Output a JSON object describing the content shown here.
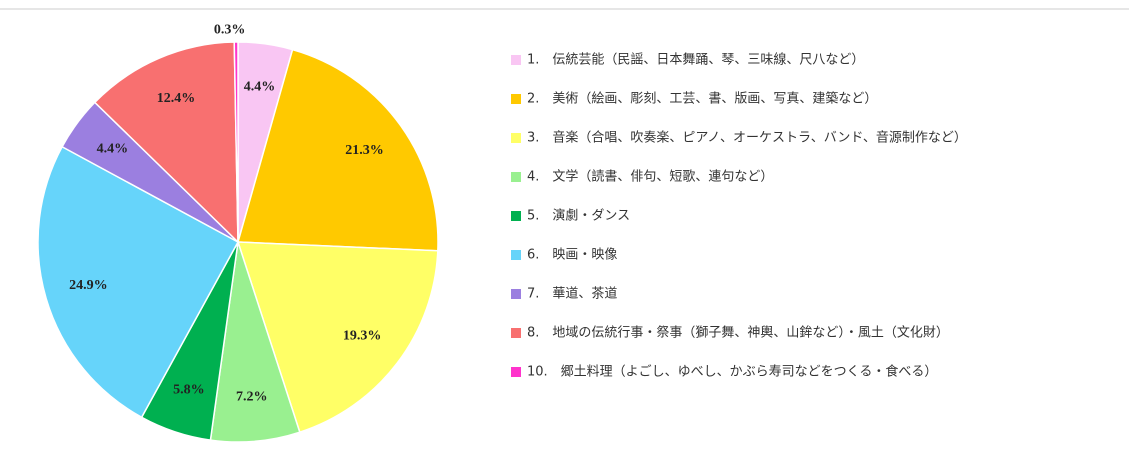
{
  "chart_data": {
    "type": "pie",
    "categories": [
      "1.　伝統芸能（民謡、日本舞踊、琴、三味線、尺八など）",
      "2.　美術（絵画、彫刻、工芸、書、版画、写真、建築など）",
      "3.　音楽（合唱、吹奏楽、ピアノ、オーケストラ、バンド、音源制作など）",
      "4.　文学（読書、俳句、短歌、連句など）",
      "5.　演劇・ダンス",
      "6.　映画・映像",
      "7.　華道、茶道",
      "8.　地域の伝統行事・祭事（獅子舞、神輿、山鉾など）・風土（文化財）",
      "10.　郷土料理（よごし、ゆべし、かぶら寿司などをつくる・食べる）"
    ],
    "values": [
      4.4,
      21.3,
      19.3,
      7.2,
      5.8,
      24.9,
      4.4,
      12.4,
      0.3
    ],
    "value_labels": [
      "4.4%",
      "21.3%",
      "19.3%",
      "7.2%",
      "5.8%",
      "24.9%",
      "4.4%",
      "12.4%",
      "0.3%"
    ],
    "colors": [
      "#f9c6f3",
      "#ffc900",
      "#ffff66",
      "#99f090",
      "#00b050",
      "#66d4fa",
      "#9b7fe0",
      "#f87070",
      "#ff33cc"
    ],
    "legend": "right"
  }
}
